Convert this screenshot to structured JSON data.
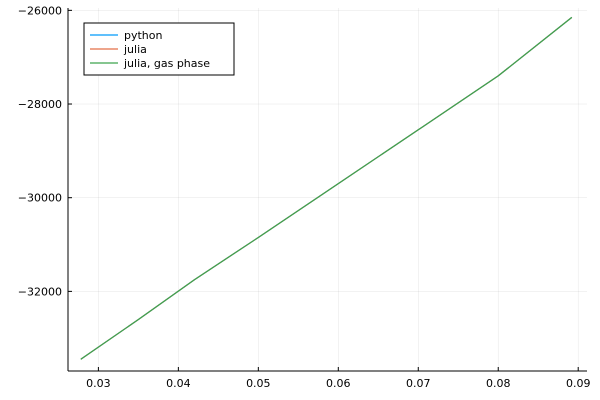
{
  "chart_data": {
    "type": "line",
    "title": "",
    "xlabel": "",
    "ylabel": "",
    "xlim": [
      0.0262,
      0.0911
    ],
    "ylim": [
      -33700,
      -25950
    ],
    "x_ticks": [
      0.03,
      0.04,
      0.05,
      0.06,
      0.07,
      0.08,
      0.09
    ],
    "x_tick_labels": [
      "0.03",
      "0.04",
      "0.05",
      "0.06",
      "0.07",
      "0.08",
      "0.09"
    ],
    "y_ticks": [
      -32000,
      -30000,
      -28000,
      -26000
    ],
    "y_tick_labels": [
      "−32000",
      "−30000",
      "−28000",
      "−26000"
    ],
    "grid": true,
    "legend_position": "top-left",
    "series": [
      {
        "name": "python",
        "color": "#009AFA",
        "x": [
          0.0278,
          0.035,
          0.042,
          0.05,
          0.06,
          0.07,
          0.08,
          0.0892
        ],
        "y": [
          -33450,
          -32600,
          -31750,
          -30850,
          -29700,
          -28550,
          -27400,
          -26150
        ]
      },
      {
        "name": "julia",
        "color": "#E36F47",
        "x": [
          0.0278,
          0.035,
          0.042,
          0.05,
          0.06,
          0.07,
          0.08,
          0.0892
        ],
        "y": [
          -33450,
          -32600,
          -31750,
          -30850,
          -29700,
          -28550,
          -27400,
          -26150
        ]
      },
      {
        "name": "julia, gas phase",
        "color": "#3EA44E",
        "x": [
          0.0278,
          0.035,
          0.042,
          0.05,
          0.06,
          0.07,
          0.08,
          0.0892
        ],
        "y": [
          -33450,
          -32600,
          -31750,
          -30850,
          -29700,
          -28550,
          -27400,
          -26150
        ]
      }
    ]
  }
}
